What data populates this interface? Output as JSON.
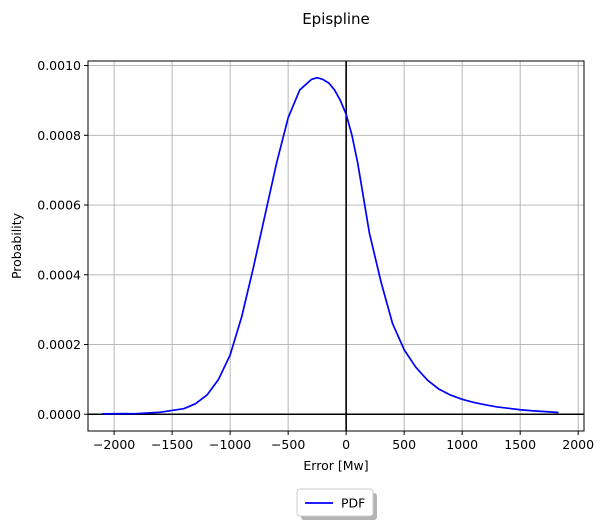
{
  "chart_data": {
    "type": "line",
    "title": "Epispline",
    "xlabel": "Error [Mw]",
    "ylabel": "Probability",
    "xlim": [
      -2225,
      2050
    ],
    "ylim": [
      -4.8e-05,
      0.001013
    ],
    "x_ticks": [
      -2000,
      -1500,
      -1000,
      -500,
      0,
      500,
      1000,
      1500,
      2000
    ],
    "x_tick_labels": [
      "−2000",
      "−1500",
      "−1000",
      "−500",
      "0",
      "500",
      "1000",
      "1500",
      "2000"
    ],
    "y_ticks": [
      0,
      0.0002,
      0.0004,
      0.0006,
      0.0008,
      0.001
    ],
    "y_tick_labels": [
      "0.0000",
      "0.0002",
      "0.0004",
      "0.0006",
      "0.0008",
      "0.0010"
    ],
    "grid": true,
    "reference_lines": {
      "x": 0,
      "y": 0
    },
    "legend_placement": "below-center",
    "series": [
      {
        "name": "PDF",
        "color": "#0000ff",
        "x": [
          -2100,
          -1800,
          -1600,
          -1400,
          -1300,
          -1200,
          -1100,
          -1000,
          -900,
          -800,
          -700,
          -600,
          -500,
          -400,
          -300,
          -250,
          -200,
          -150,
          -100,
          -50,
          0,
          50,
          100,
          150,
          200,
          300,
          400,
          500,
          600,
          700,
          800,
          900,
          1000,
          1100,
          1200,
          1300,
          1400,
          1500,
          1600,
          1700,
          1830
        ],
        "y": [
          1e-06,
          2e-06,
          6e-06,
          1.6e-05,
          3e-05,
          5.5e-05,
          0.0001,
          0.00017,
          0.00028,
          0.00042,
          0.00057,
          0.00072,
          0.00085,
          0.00093,
          0.00096,
          0.000965,
          0.00096,
          0.00095,
          0.00093,
          0.0009,
          0.00086,
          0.0008,
          0.00072,
          0.00062,
          0.00052,
          0.00038,
          0.00026,
          0.000185,
          0.000135,
          9.8e-05,
          7.2e-05,
          5.5e-05,
          4.3e-05,
          3.4e-05,
          2.7e-05,
          2.1e-05,
          1.7e-05,
          1.3e-05,
          1e-05,
          8e-06,
          5e-06
        ]
      }
    ],
    "axis_line_color": "#000000",
    "grid_color": "#b0b0b0"
  }
}
